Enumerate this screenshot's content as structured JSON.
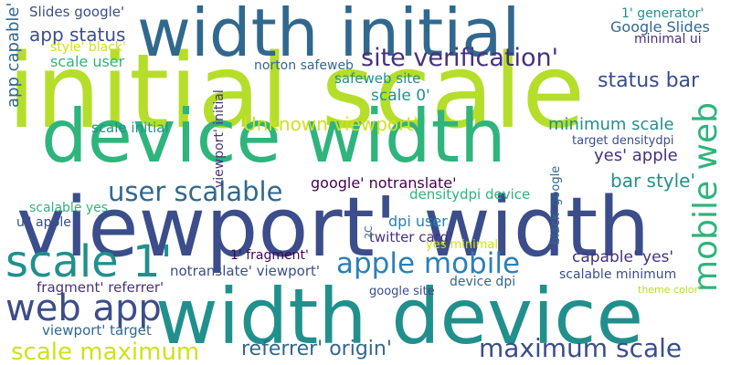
{
  "palette": {
    "navy": "#3b4d8a",
    "slate": "#31688e",
    "blue": "#2c7fb8",
    "teal": "#21908d",
    "green": "#2fb47c",
    "lime": "#b5de2b",
    "yellow": "#cfe11c",
    "purple": "#46327e",
    "darkpurple": "#440154"
  },
  "words": [
    "initial scale",
    "device width",
    "viewport' width",
    "width device",
    "width initial",
    "scale 1'",
    "site verification'",
    "apple mobile",
    "web app",
    "user scalable",
    "mobile web",
    "maximum scale",
    "scale maximum",
    "referrer' origin'",
    "Slides google'",
    "app status",
    "app capable'",
    "style' black'",
    "scale user",
    "norton safeweb",
    "safeweb site",
    "scale 0'",
    "status bar",
    "Google Slides",
    "1' generator'",
    "minimal ui",
    "Unknown viewport'",
    "minimum scale",
    "target densitydpi",
    "yes' apple",
    "scale initial",
    "viewport' initial",
    "bar style'",
    "google' notranslate'",
    "densitydpi device",
    "scalable yes",
    "ui' apple",
    "dpi user",
    "twitter card'",
    "capable' yes'",
    "yes minimal",
    "1' fragment'",
    "notranslate' viewport'",
    "fragment' referrer'",
    "device dpi",
    "scalable minimum",
    "google site",
    "viewport' target",
    "black' google",
    "theme color'",
    "2C"
  ]
}
